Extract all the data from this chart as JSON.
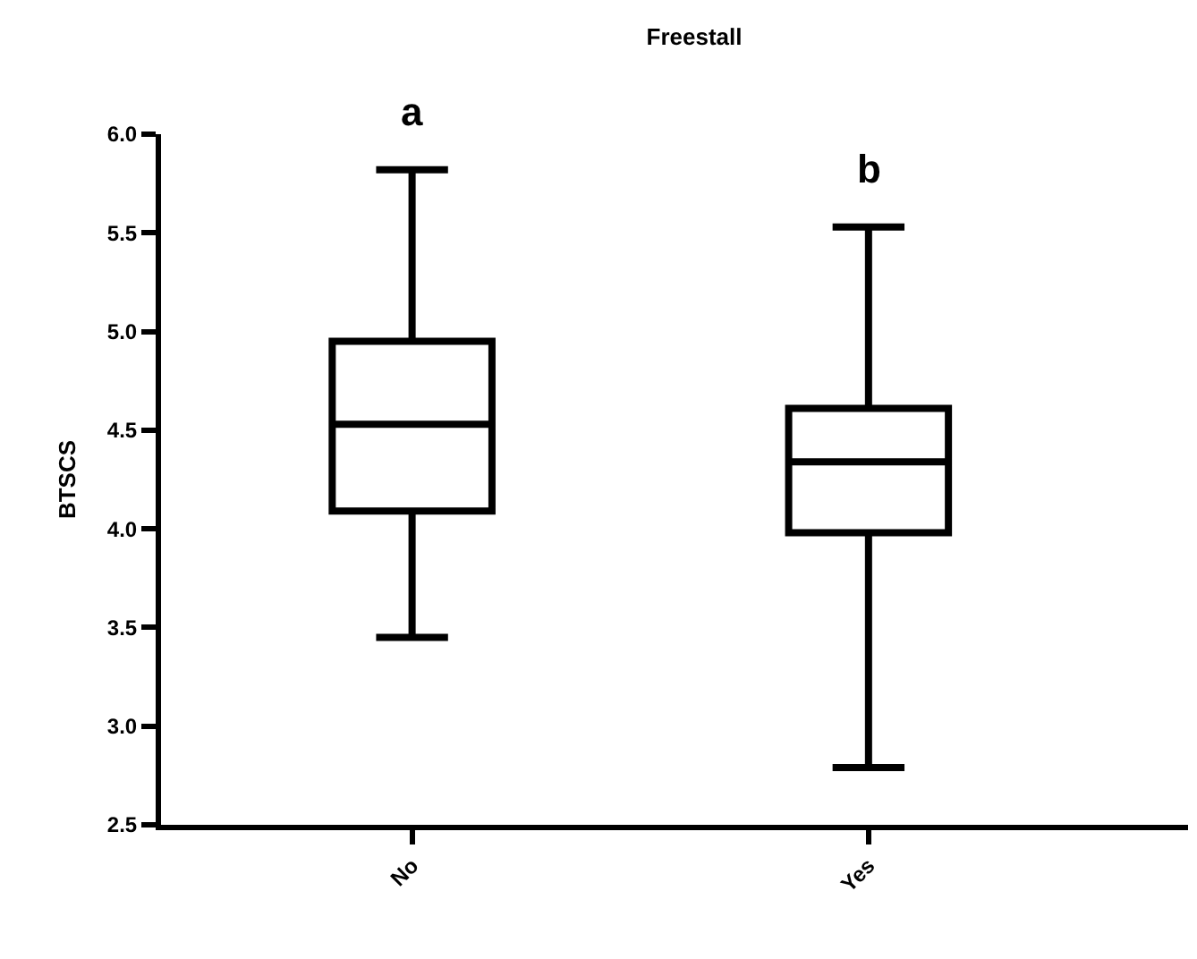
{
  "chart_data": {
    "type": "box",
    "title": "Freestall",
    "ylabel": "BTSCS",
    "categories": [
      "No",
      "Yes"
    ],
    "boxes": [
      {
        "low": 3.45,
        "q1": 4.09,
        "median": 4.53,
        "q3": 4.95,
        "high": 5.82
      },
      {
        "low": 2.79,
        "q1": 3.98,
        "median": 4.34,
        "q3": 4.61,
        "high": 5.53
      }
    ],
    "color": "#000000",
    "ylim": [
      2.5,
      6.0
    ],
    "yticks": [
      {
        "value": 2.5,
        "label": "2.5"
      },
      {
        "value": 3.0,
        "label": "3.0"
      },
      {
        "value": 3.5,
        "label": "3.5"
      },
      {
        "value": 4.0,
        "label": "4.0"
      },
      {
        "value": 4.5,
        "label": "4.5"
      },
      {
        "value": 5.0,
        "label": "5.0"
      },
      {
        "value": 5.5,
        "label": "5.5"
      },
      {
        "value": 6.0,
        "label": "6.0"
      }
    ],
    "annotations": [
      "a",
      "b"
    ]
  }
}
